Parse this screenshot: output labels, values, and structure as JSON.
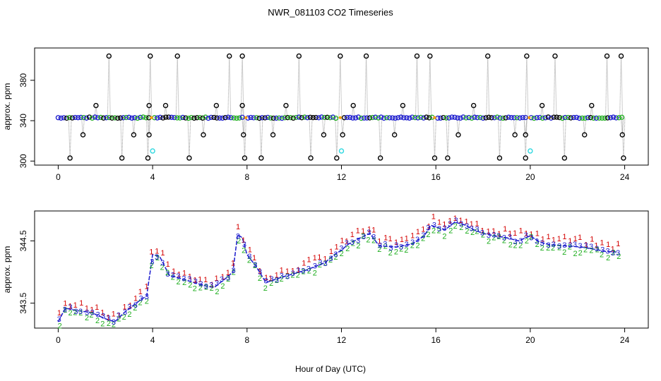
{
  "title": "NWR_081103  CO2 Timeseries",
  "xlabel": "Hour of Day (UTC)",
  "colors": {
    "s1": "#d40000",
    "s2": "#1fae1f",
    "s3": "#1a1acd",
    "gray": "#9a9a9a",
    "cyan": "#2fd8e0",
    "orange": "#ff9d00"
  },
  "chart_data": [
    {
      "type": "scatter",
      "ylabel": "approx. ppm",
      "xlim": [
        -1,
        25
      ],
      "ylim": [
        296,
        412
      ],
      "xticks": [
        0,
        4,
        8,
        12,
        16,
        20,
        24
      ],
      "yticks": [
        300,
        340,
        380
      ],
      "baseline": 343,
      "spikes_high": [
        2.15,
        3.9,
        5.05,
        7.25,
        7.8,
        10.2,
        11.95,
        13.05,
        15.2,
        15.75,
        18.2,
        19.85,
        21.05,
        23.25,
        23.85
      ],
      "spikes_mid": [
        1.6,
        3.85,
        4.55,
        6.7,
        7.8,
        9.65,
        12.5,
        14.6,
        17.6,
        20.5,
        22.6
      ],
      "spikes_low": [
        0.5,
        2.7,
        3.8,
        5.55,
        7.9,
        8.6,
        10.7,
        11.8,
        13.65,
        15.95,
        16.5,
        18.7,
        19.8,
        21.45,
        23.95
      ],
      "spikes_fall": [
        1.05,
        3.2,
        3.85,
        6.15,
        7.85,
        9.1,
        11.25,
        12.05,
        14.25,
        16.95,
        19.35,
        19.8,
        22.3,
        23.9
      ],
      "cyan_points": [
        [
          4.0,
          310
        ],
        [
          12.0,
          310
        ],
        [
          20.0,
          310
        ]
      ]
    },
    {
      "type": "line",
      "ylabel": "approx. ppm",
      "xlim": [
        -1,
        25
      ],
      "ylim": [
        343.1,
        344.98
      ],
      "xticks": [
        0,
        4,
        8,
        12,
        16,
        20,
        24
      ],
      "yticks": [
        343.5,
        344.5
      ],
      "ytick_labels": [
        "343.5",
        "344.5"
      ],
      "series": [
        {
          "name": "1",
          "symbol": "1",
          "offset": 0.09
        },
        {
          "name": "2",
          "symbol": "2",
          "offset": -0.06
        },
        {
          "name": "3",
          "symbol": "3",
          "offset": 0
        }
      ],
      "x": [
        0,
        0.3,
        0.8,
        1.4,
        1.7,
        2.0,
        2.4,
        2.8,
        3.3,
        3.75,
        4.0,
        4.3,
        4.7,
        5.5,
        6.2,
        6.6,
        7.1,
        7.4,
        7.6,
        7.8,
        8.0,
        8.4,
        8.8,
        9.5,
        10.5,
        11.3,
        11.7,
        12.0,
        12.3,
        12.8,
        13.2,
        13.6,
        14.3,
        15.0,
        15.5,
        15.8,
        16.0,
        16.4,
        16.8,
        17.2,
        17.6,
        18.0,
        18.5,
        19.0,
        19.5,
        20.0,
        20.4,
        20.8,
        21.5,
        22.2,
        22.8,
        23.2,
        23.7
      ],
      "y": [
        343.2,
        343.42,
        343.38,
        343.35,
        343.3,
        343.25,
        343.2,
        343.35,
        343.5,
        343.62,
        344.28,
        344.25,
        343.95,
        343.86,
        343.78,
        343.75,
        343.9,
        344.0,
        344.6,
        344.55,
        344.28,
        344.08,
        343.83,
        343.92,
        344.03,
        344.15,
        344.28,
        344.35,
        344.45,
        344.55,
        344.62,
        344.42,
        344.4,
        344.45,
        344.58,
        344.75,
        344.72,
        344.68,
        344.8,
        344.76,
        344.68,
        344.62,
        344.58,
        344.55,
        344.5,
        344.58,
        344.48,
        344.44,
        344.42,
        344.4,
        344.36,
        344.33,
        344.32
      ]
    }
  ]
}
